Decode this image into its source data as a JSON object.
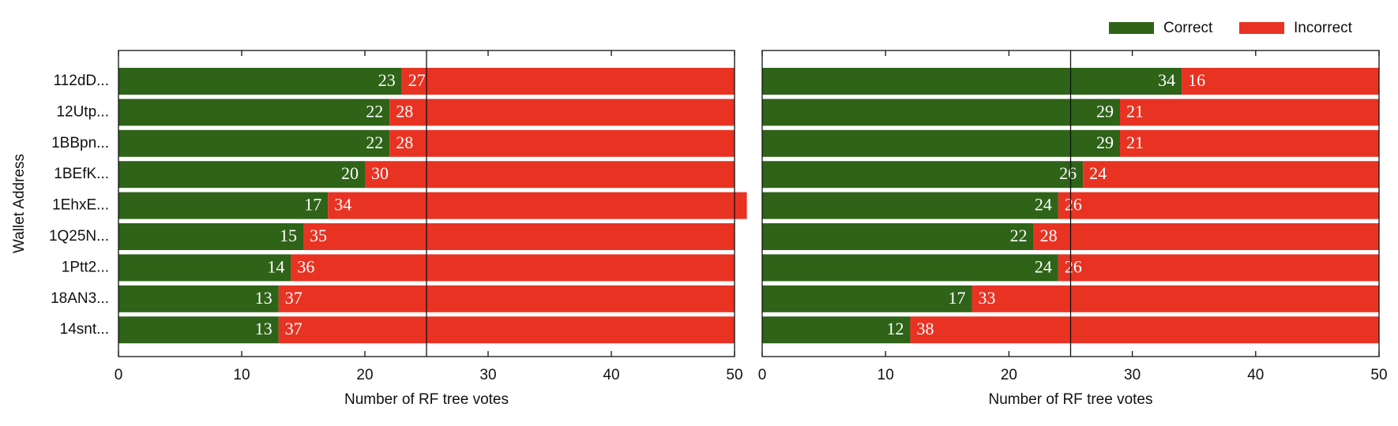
{
  "chart_data": [
    {
      "type": "bar",
      "orientation": "horizontal",
      "stacked": true,
      "ylabel": "Wallet Address",
      "xlabel": "Number of RF tree votes",
      "categories": [
        "112dD...",
        "12Utp...",
        "1BBpn...",
        "1BEfK...",
        "1EhxE...",
        "1Q25N...",
        "1Ptt2...",
        "18AN3...",
        "14snt..."
      ],
      "series": [
        {
          "name": "Correct",
          "color": "#2e6318",
          "values": [
            23,
            22,
            22,
            20,
            17,
            15,
            14,
            13,
            13
          ]
        },
        {
          "name": "Incorrect",
          "color": "#e83323",
          "values": [
            27,
            28,
            28,
            30,
            34,
            35,
            36,
            37,
            37
          ]
        }
      ],
      "xlim": [
        0,
        50
      ],
      "xticks": [
        0,
        10,
        20,
        30,
        40,
        50
      ],
      "reference_line": 25
    },
    {
      "type": "bar",
      "orientation": "horizontal",
      "stacked": true,
      "xlabel": "Number of RF tree votes",
      "series": [
        {
          "name": "Correct",
          "color": "#2e6318",
          "values": [
            34,
            29,
            29,
            26,
            24,
            22,
            24,
            17,
            12
          ]
        },
        {
          "name": "Incorrect",
          "color": "#e83323",
          "values": [
            16,
            21,
            21,
            24,
            26,
            28,
            26,
            33,
            38
          ]
        }
      ],
      "xlim": [
        0,
        50
      ],
      "xticks": [
        0,
        10,
        20,
        30,
        40,
        50
      ],
      "reference_line": 25,
      "legend": "top-right"
    }
  ]
}
